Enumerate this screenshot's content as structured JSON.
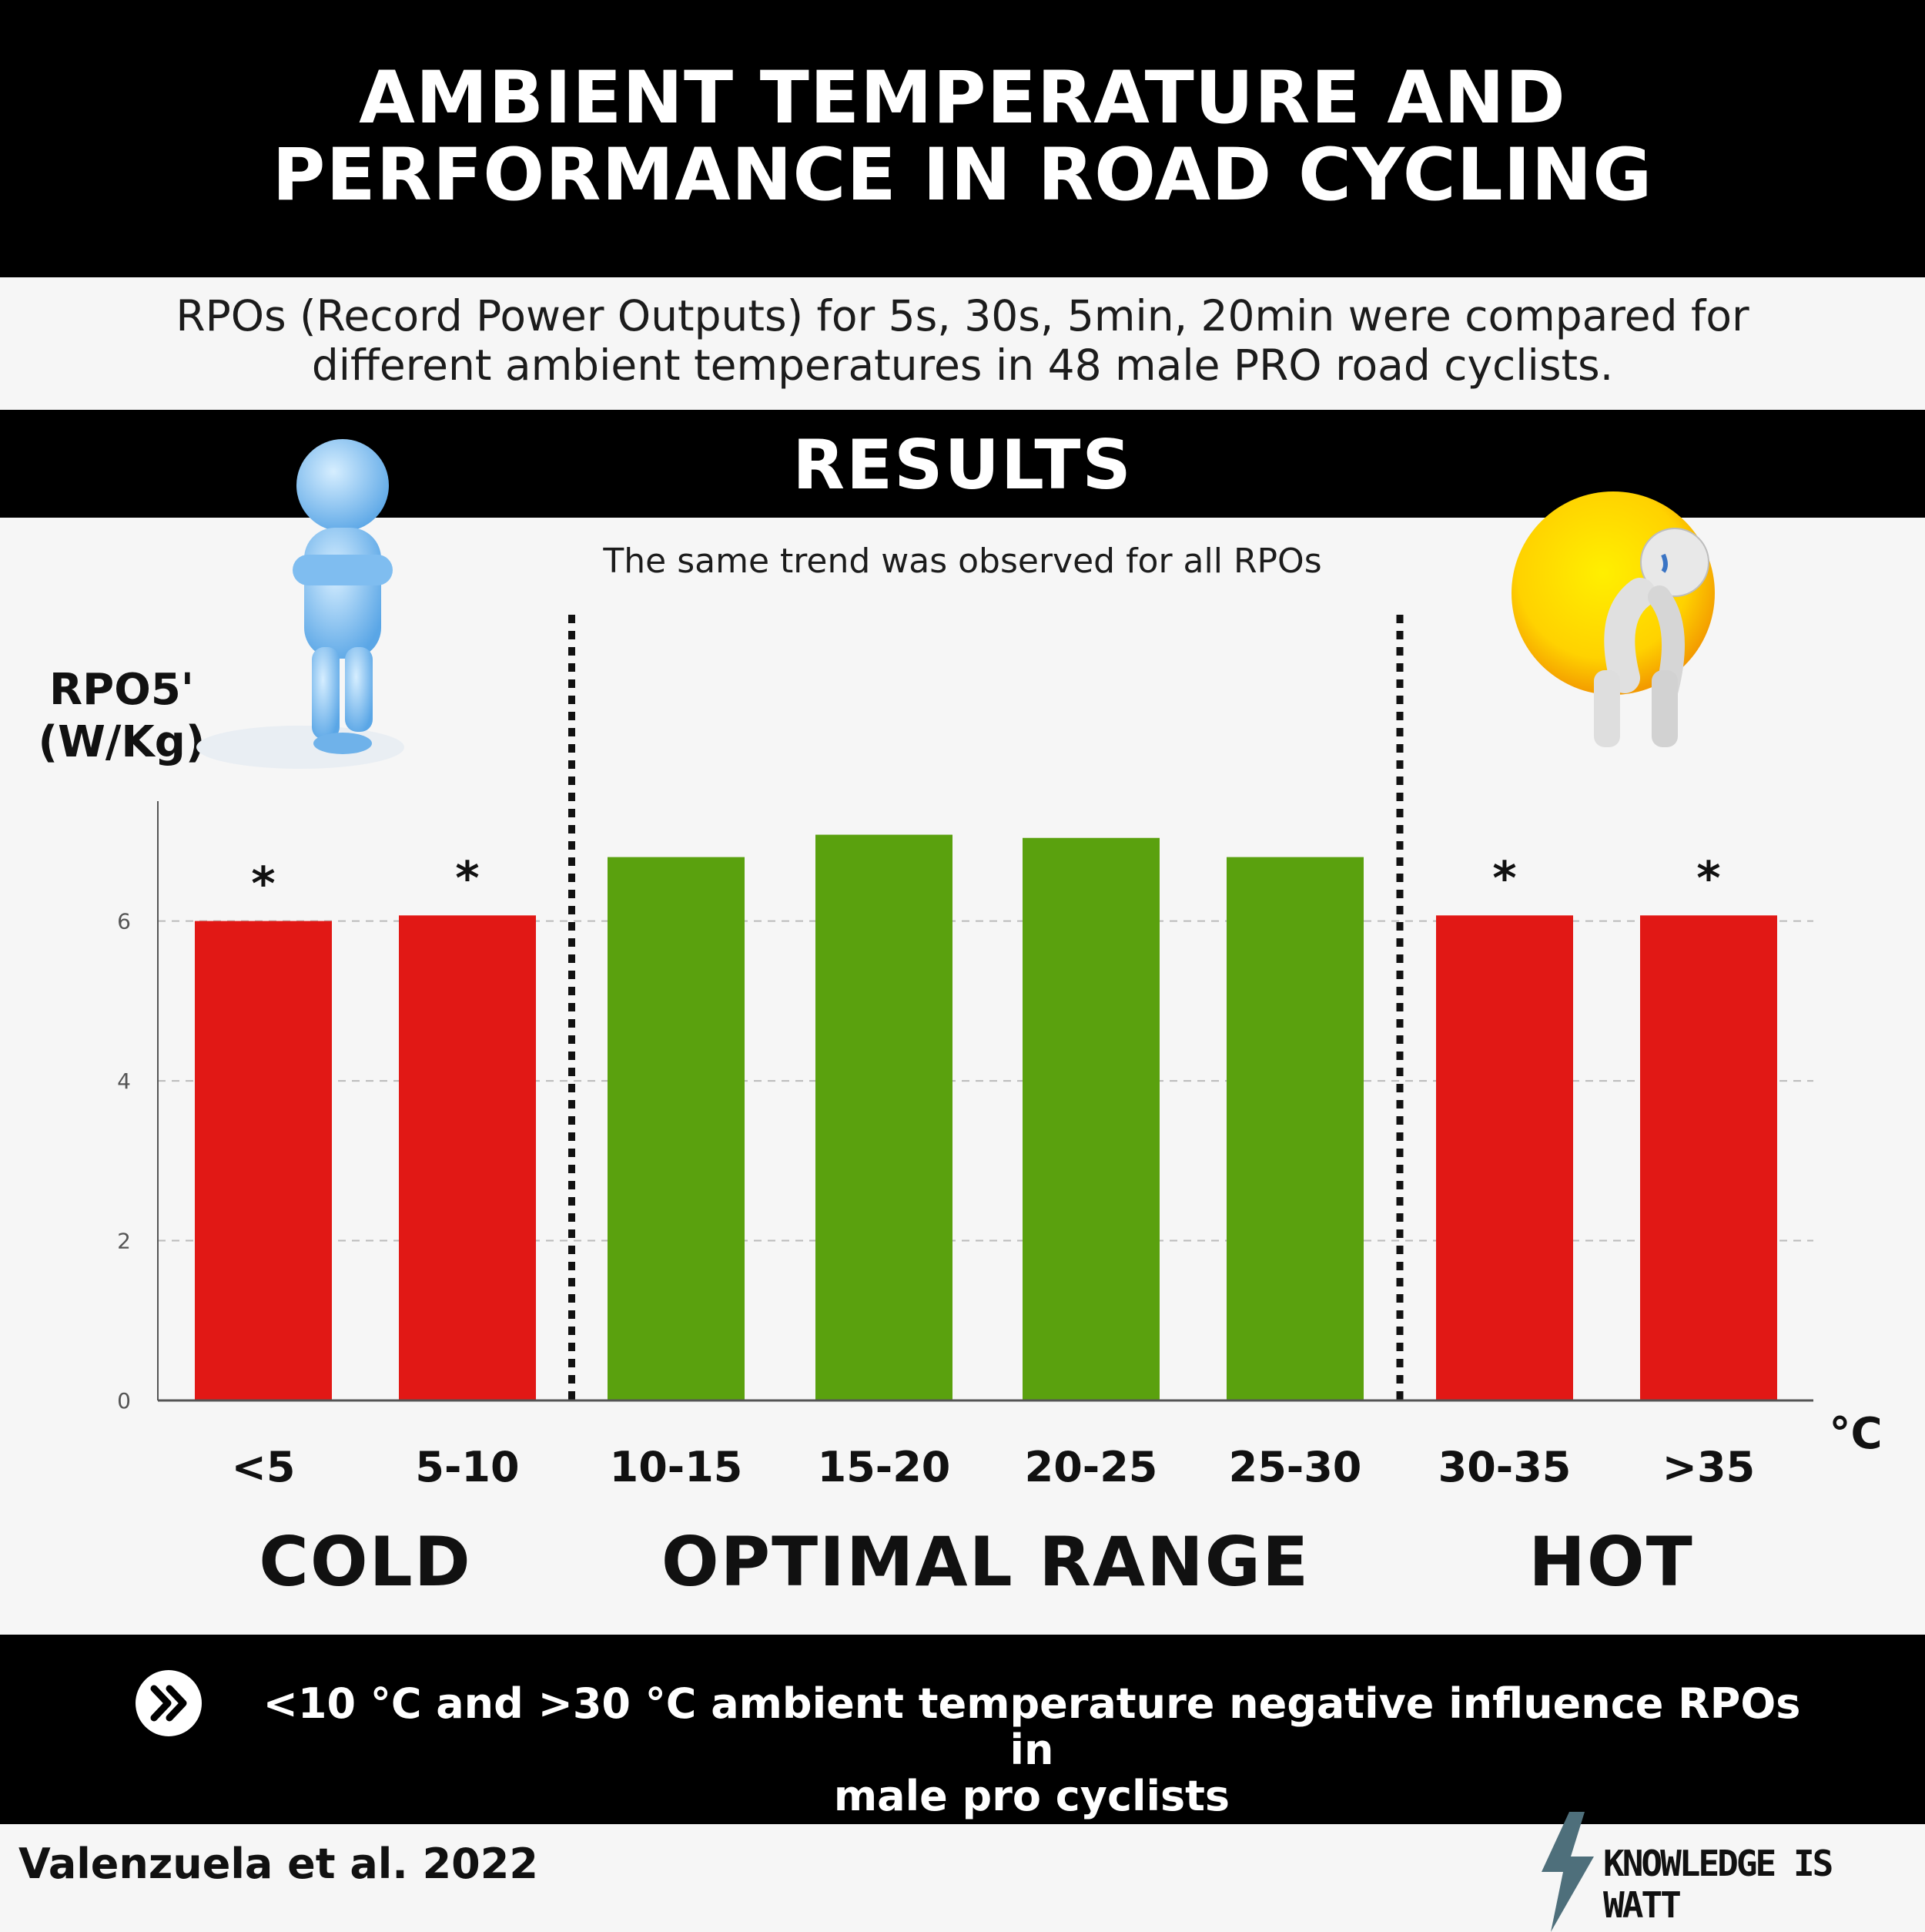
{
  "header": {
    "title_line1": "AMBIENT TEMPERATURE AND",
    "title_line2": "PERFORMANCE IN ROAD CYCLING",
    "description_line1": "RPOs (Record Power Outputs) for 5s, 30s, 5min, 20min were compared for",
    "description_line2": "different ambient temperatures in 48 male PRO road cyclists."
  },
  "results": {
    "title": "RESULTS",
    "note": "The same trend was observed for all RPOs"
  },
  "chart_data": {
    "type": "bar",
    "title": "",
    "ylabel_line1": "RPO5'",
    "ylabel_line2": "(W/Kg)",
    "xlabel": "°C",
    "categories": [
      "<5",
      "5-10",
      "10-15",
      "15-20",
      "20-25",
      "25-30",
      "30-35",
      ">35"
    ],
    "values": [
      6.0,
      6.07,
      6.8,
      7.08,
      7.04,
      6.8,
      6.07,
      6.07
    ],
    "significant": [
      true,
      true,
      false,
      false,
      false,
      false,
      true,
      true
    ],
    "significance_marker": "*",
    "ylim": [
      0,
      7.5
    ],
    "yticks": [
      0,
      2,
      4,
      6
    ],
    "grid": true,
    "colors": {
      "cold": "#e11815",
      "optimal": "#5aa10e",
      "hot": "#e11815",
      "grid": "#bbbbbb",
      "axis": "#555555",
      "tick_label": "#555555"
    },
    "groups": [
      {
        "label": "COLD",
        "from": 0,
        "to": 1,
        "color_key": "cold"
      },
      {
        "label": "OPTIMAL RANGE",
        "from": 2,
        "to": 5,
        "color_key": "optimal"
      },
      {
        "label": "HOT",
        "from": 6,
        "to": 7,
        "color_key": "hot"
      }
    ]
  },
  "footer": {
    "icon": "double-chevron-right-icon",
    "conclusion_line1": "<10 °C and >30 °C ambient temperature negative influence RPOs in",
    "conclusion_line2": "male pro cyclists",
    "citation": "Valenzuela  et al. 2022",
    "brand": "KNOWLEDGE IS WATT",
    "brand_icon": "lightning-bolt-icon"
  },
  "illustrations": {
    "cold_figure": "freezing-person-icon",
    "hot_figure": "sweating-person-sun-icon"
  }
}
